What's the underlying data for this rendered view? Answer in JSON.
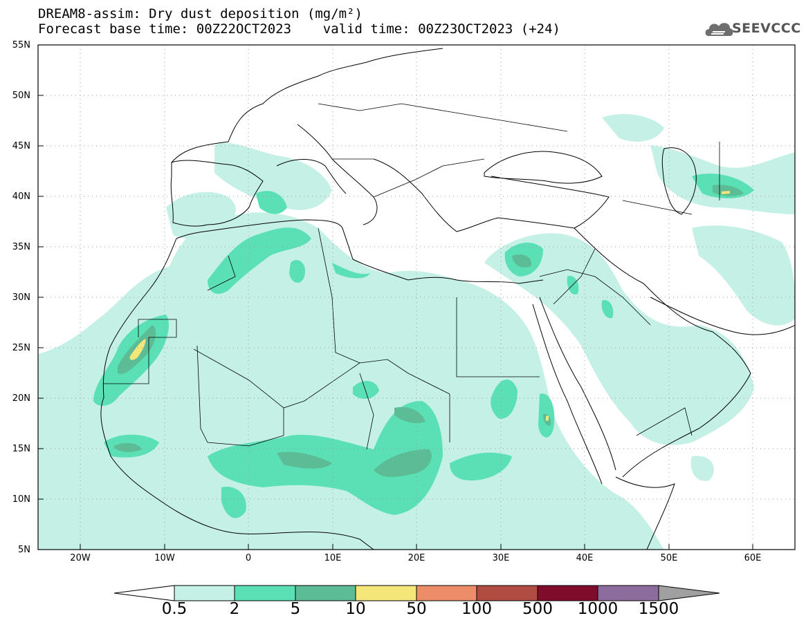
{
  "header": {
    "title_line1": "DREAM8-assim: Dry dust deposition (mg/m²)",
    "title_line2": "Forecast base time: 00Z22OCT2023    valid time: 00Z23OCT2023 (+24)",
    "logo_text": "SEEVCCC",
    "logo_icon": "cloud-icon"
  },
  "map": {
    "lon_range": [
      -25,
      65
    ],
    "lat_range": [
      5,
      55
    ],
    "lat_labels": [
      "5N",
      "10N",
      "15N",
      "20N",
      "25N",
      "30N",
      "35N",
      "40N",
      "45N",
      "50N",
      "55N"
    ],
    "lon_labels": [
      "20W",
      "10W",
      "0",
      "10E",
      "20E",
      "30E",
      "40E",
      "50E",
      "60E"
    ]
  },
  "colorbar": {
    "labels": [
      "0.5",
      "2",
      "5",
      "10",
      "50",
      "100",
      "500",
      "1000",
      "1500"
    ],
    "colors": [
      "#c4f0e6",
      "#5ae0b4",
      "#5cbc96",
      "#f5e67a",
      "#ec8c68",
      "#b04c40",
      "#800c2c",
      "#8c6c9c",
      "#a0a0a0"
    ]
  }
}
